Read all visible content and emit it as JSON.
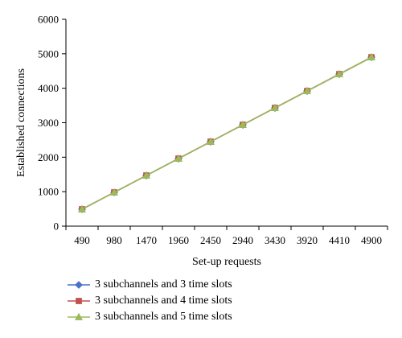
{
  "chart_data": {
    "type": "line",
    "title": "",
    "xlabel": "Set-up requests",
    "ylabel": "Established connections",
    "categories": [
      "490",
      "980",
      "1470",
      "1960",
      "2450",
      "2940",
      "3430",
      "3920",
      "4410",
      "4900"
    ],
    "ylim": [
      0,
      6000
    ],
    "yticks": [
      0,
      1000,
      2000,
      3000,
      4000,
      5000,
      6000
    ],
    "grid": false,
    "legend_position": "bottom",
    "series": [
      {
        "name": "3 subchannels and 3 time slots",
        "color": "#4a72c8",
        "marker": "diamond",
        "values": [
          490,
          980,
          1470,
          1960,
          2450,
          2940,
          3430,
          3920,
          4410,
          4900
        ]
      },
      {
        "name": "3 subchannels and 4 time slots",
        "color": "#c0504d",
        "marker": "square",
        "values": [
          490,
          980,
          1470,
          1960,
          2450,
          2940,
          3430,
          3920,
          4410,
          4900
        ]
      },
      {
        "name": "3 subchannels and 5 time slots",
        "color": "#9bbb59",
        "marker": "triangle",
        "values": [
          490,
          980,
          1470,
          1960,
          2450,
          2940,
          3430,
          3920,
          4410,
          4900
        ]
      }
    ]
  }
}
